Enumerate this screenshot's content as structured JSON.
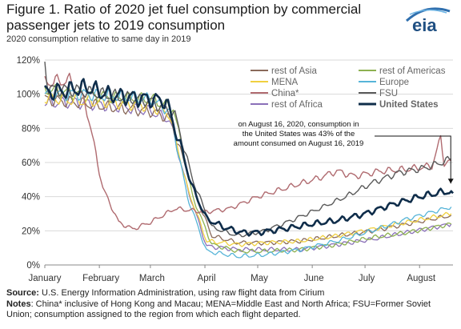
{
  "header": {
    "title": "Figure 1. Ratio of 2020 jet fuel consumption by commercial passenger jets to 2019 consumption",
    "subtitle": "2020 consumption relative to same day in 2019",
    "logo_text": "eia"
  },
  "footer": {
    "source_label": "Source:",
    "source_text": "U.S. Energy Information Administration, using raw flight data from Cirium",
    "notes_label": "Notes",
    "notes_text": ": China* inclusive of Hong Kong and Macau; MENA=Middle East and North Africa; FSU=Former Soviet Union; consumption assigned to the region from which each flight departed."
  },
  "chart_data": {
    "type": "line",
    "title": "Figure 1. Ratio of 2020 jet fuel consumption by commercial passenger jets to 2019 consumption",
    "subtitle": "2020 consumption relative to same day in 2019",
    "x_unit": "day of 2020",
    "x_range": [
      "2020-01-01",
      "2020-08-20"
    ],
    "month_labels": [
      "January",
      "February",
      "March",
      "April",
      "May",
      "June",
      "July",
      "August"
    ],
    "y_ticks": [
      "0%",
      "20%",
      "40%",
      "60%",
      "80%",
      "100%",
      "120%"
    ],
    "ylim": [
      0,
      1.2
    ],
    "grid": true,
    "legend_position": "top-right",
    "annotation": {
      "text": [
        "on August 16, 2020, consumption in",
        "the United States was 43% of the",
        "amount consumed on August 16, 2019"
      ],
      "target_date": "2020-08-16",
      "target_value": 0.43
    },
    "series": [
      {
        "name": "rest of Asia",
        "color": "#8a6a5a",
        "width": 1.3,
        "points": [
          [
            "2020-01-01",
            0.97
          ],
          [
            "2020-01-20",
            0.95
          ],
          [
            "2020-02-10",
            0.92
          ],
          [
            "2020-03-01",
            0.9
          ],
          [
            "2020-03-12",
            0.86
          ],
          [
            "2020-03-25",
            0.45
          ],
          [
            "2020-04-05",
            0.17
          ],
          [
            "2020-04-20",
            0.13
          ],
          [
            "2020-05-05",
            0.13
          ],
          [
            "2020-05-25",
            0.14
          ],
          [
            "2020-06-15",
            0.17
          ],
          [
            "2020-07-05",
            0.2
          ],
          [
            "2020-07-25",
            0.24
          ],
          [
            "2020-08-19",
            0.29
          ]
        ]
      },
      {
        "name": "rest of Americas",
        "color": "#8db150",
        "width": 1.3,
        "points": [
          [
            "2020-01-01",
            1.03
          ],
          [
            "2020-01-20",
            1.0
          ],
          [
            "2020-02-10",
            0.98
          ],
          [
            "2020-03-01",
            0.97
          ],
          [
            "2020-03-14",
            0.92
          ],
          [
            "2020-03-25",
            0.4
          ],
          [
            "2020-04-05",
            0.12
          ],
          [
            "2020-04-20",
            0.08
          ],
          [
            "2020-05-05",
            0.08
          ],
          [
            "2020-05-25",
            0.09
          ],
          [
            "2020-06-15",
            0.12
          ],
          [
            "2020-07-05",
            0.16
          ],
          [
            "2020-07-25",
            0.19
          ],
          [
            "2020-08-19",
            0.24
          ]
        ]
      },
      {
        "name": "MENA",
        "color": "#f0d040",
        "width": 1.3,
        "points": [
          [
            "2020-01-01",
            0.98
          ],
          [
            "2020-01-20",
            0.96
          ],
          [
            "2020-02-10",
            0.95
          ],
          [
            "2020-03-01",
            0.93
          ],
          [
            "2020-03-12",
            0.88
          ],
          [
            "2020-03-22",
            0.45
          ],
          [
            "2020-04-02",
            0.14
          ],
          [
            "2020-04-20",
            0.12
          ],
          [
            "2020-05-05",
            0.13
          ],
          [
            "2020-05-25",
            0.14
          ],
          [
            "2020-06-15",
            0.17
          ],
          [
            "2020-07-05",
            0.21
          ],
          [
            "2020-07-25",
            0.25
          ],
          [
            "2020-08-19",
            0.3
          ]
        ]
      },
      {
        "name": "Europe",
        "color": "#56b4d8",
        "width": 1.3,
        "points": [
          [
            "2020-01-01",
            1.0
          ],
          [
            "2020-01-20",
            1.0
          ],
          [
            "2020-02-10",
            0.99
          ],
          [
            "2020-03-01",
            0.97
          ],
          [
            "2020-03-12",
            0.9
          ],
          [
            "2020-03-22",
            0.4
          ],
          [
            "2020-04-02",
            0.08
          ],
          [
            "2020-04-20",
            0.05
          ],
          [
            "2020-05-05",
            0.06
          ],
          [
            "2020-05-25",
            0.09
          ],
          [
            "2020-06-15",
            0.14
          ],
          [
            "2020-07-05",
            0.2
          ],
          [
            "2020-07-25",
            0.27
          ],
          [
            "2020-08-19",
            0.34
          ]
        ]
      },
      {
        "name": "China*",
        "color": "#b06b70",
        "width": 1.4,
        "points": [
          [
            "2020-01-01",
            1.07
          ],
          [
            "2020-01-15",
            1.08
          ],
          [
            "2020-01-24",
            0.95
          ],
          [
            "2020-02-03",
            0.45
          ],
          [
            "2020-02-12",
            0.25
          ],
          [
            "2020-02-20",
            0.21
          ],
          [
            "2020-03-01",
            0.25
          ],
          [
            "2020-03-15",
            0.33
          ],
          [
            "2020-04-01",
            0.31
          ],
          [
            "2020-04-15",
            0.33
          ],
          [
            "2020-05-01",
            0.4
          ],
          [
            "2020-05-20",
            0.46
          ],
          [
            "2020-06-05",
            0.51
          ],
          [
            "2020-06-15",
            0.55
          ],
          [
            "2020-06-25",
            0.52
          ],
          [
            "2020-07-10",
            0.55
          ],
          [
            "2020-07-25",
            0.56
          ],
          [
            "2020-08-08",
            0.58
          ],
          [
            "2020-08-13",
            0.74
          ],
          [
            "2020-08-15",
            0.6
          ],
          [
            "2020-08-19",
            0.61
          ]
        ]
      },
      {
        "name": "FSU",
        "color": "#5a5a5a",
        "width": 1.4,
        "points": [
          [
            "2020-01-01",
            1.2
          ],
          [
            "2020-01-03",
            1.03
          ],
          [
            "2020-01-20",
            1.02
          ],
          [
            "2020-02-10",
            0.99
          ],
          [
            "2020-03-01",
            0.96
          ],
          [
            "2020-03-15",
            0.88
          ],
          [
            "2020-03-25",
            0.5
          ],
          [
            "2020-04-05",
            0.22
          ],
          [
            "2020-04-20",
            0.17
          ],
          [
            "2020-05-05",
            0.2
          ],
          [
            "2020-05-20",
            0.26
          ],
          [
            "2020-06-05",
            0.33
          ],
          [
            "2020-06-20",
            0.4
          ],
          [
            "2020-07-05",
            0.48
          ],
          [
            "2020-07-20",
            0.54
          ],
          [
            "2020-08-05",
            0.57
          ],
          [
            "2020-08-19",
            0.62
          ]
        ]
      },
      {
        "name": "rest of Africa",
        "color": "#8a70b8",
        "width": 1.3,
        "points": [
          [
            "2020-01-01",
            0.95
          ],
          [
            "2020-01-20",
            0.95
          ],
          [
            "2020-02-10",
            0.93
          ],
          [
            "2020-03-01",
            0.9
          ],
          [
            "2020-03-12",
            0.85
          ],
          [
            "2020-03-22",
            0.45
          ],
          [
            "2020-04-02",
            0.11
          ],
          [
            "2020-04-20",
            0.09
          ],
          [
            "2020-05-05",
            0.09
          ],
          [
            "2020-05-25",
            0.09
          ],
          [
            "2020-06-15",
            0.12
          ],
          [
            "2020-07-05",
            0.15
          ],
          [
            "2020-07-25",
            0.19
          ],
          [
            "2020-08-19",
            0.24
          ]
        ]
      },
      {
        "name": "United States",
        "color": "#0f2d4a",
        "width": 2.6,
        "points": [
          [
            "2020-01-01",
            1.01
          ],
          [
            "2020-01-12",
            1.02
          ],
          [
            "2020-01-25",
            1.04
          ],
          [
            "2020-02-05",
            1.0
          ],
          [
            "2020-02-20",
            0.98
          ],
          [
            "2020-03-01",
            0.97
          ],
          [
            "2020-03-10",
            0.96
          ],
          [
            "2020-03-18",
            0.7
          ],
          [
            "2020-03-25",
            0.45
          ],
          [
            "2020-04-02",
            0.27
          ],
          [
            "2020-04-12",
            0.22
          ],
          [
            "2020-04-22",
            0.19
          ],
          [
            "2020-05-01",
            0.19
          ],
          [
            "2020-05-15",
            0.21
          ],
          [
            "2020-06-01",
            0.24
          ],
          [
            "2020-06-15",
            0.26
          ],
          [
            "2020-07-01",
            0.3
          ],
          [
            "2020-07-15",
            0.35
          ],
          [
            "2020-08-01",
            0.4
          ],
          [
            "2020-08-16",
            0.43
          ],
          [
            "2020-08-20",
            0.42
          ]
        ]
      }
    ]
  }
}
